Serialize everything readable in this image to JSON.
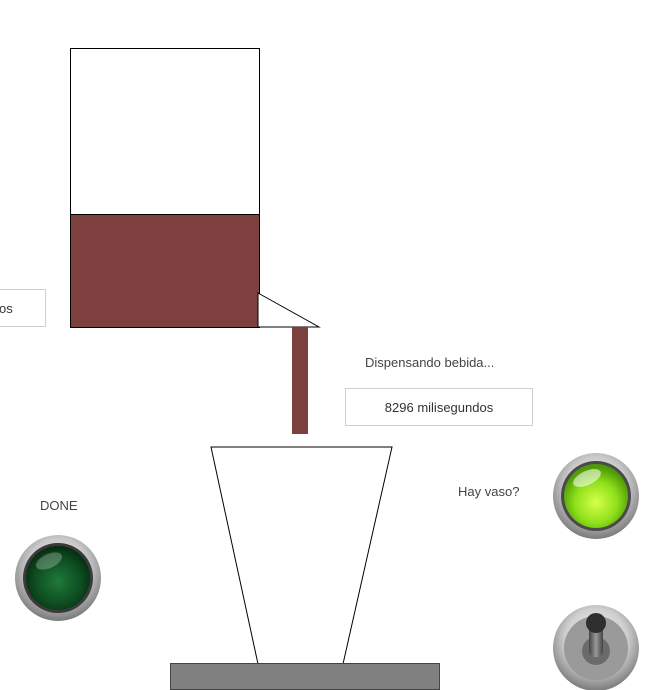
{
  "colors": {
    "liquid": "#7e3f3f",
    "base": "#808080",
    "done_lamp": "#0e4f22",
    "glass_lamp": "#8ee01a"
  },
  "tank": {
    "fill_fraction": 0.4
  },
  "left_box": {
    "value": "os"
  },
  "status": {
    "dispensing_label": "Dispensando bebida...",
    "time_value": "8296 milisegundos"
  },
  "done_indicator": {
    "label": "DONE",
    "state": "off",
    "icon": "round-led-icon"
  },
  "glass_indicator": {
    "label": "Hay vaso?",
    "state": "on",
    "icon": "round-led-icon"
  },
  "toggle": {
    "icon": "toggle-switch-icon"
  }
}
